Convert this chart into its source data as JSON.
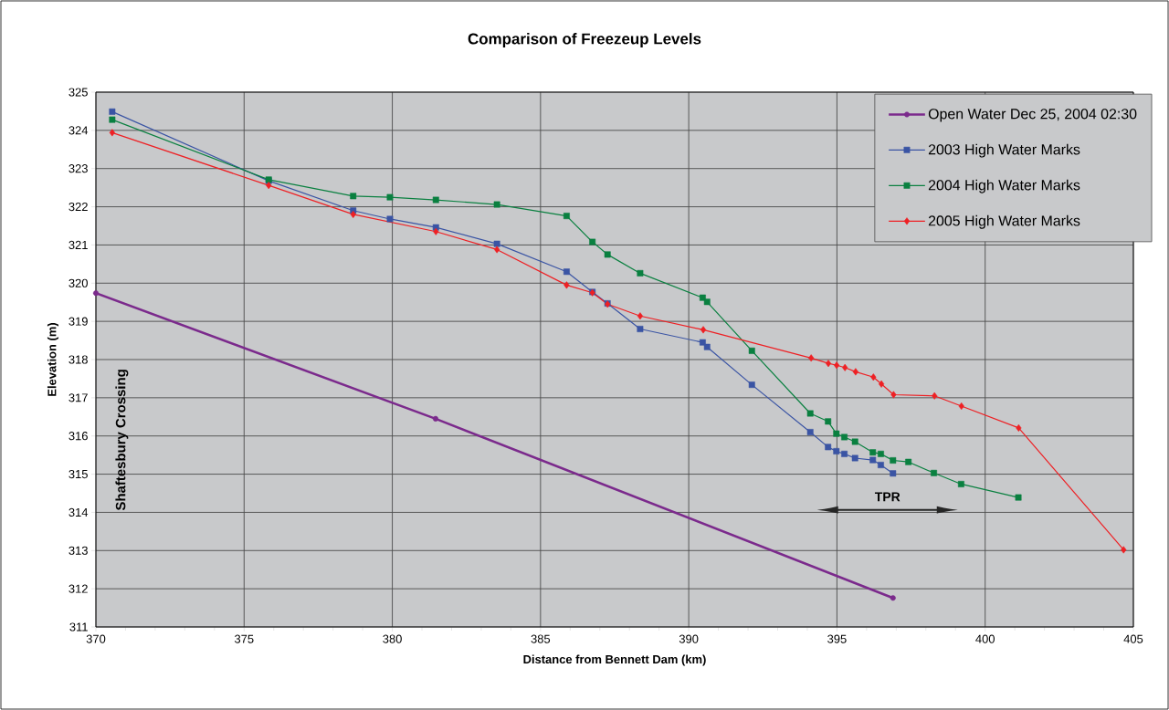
{
  "chart_data": {
    "type": "line",
    "title": "Comparison of Freezeup Levels",
    "xlabel": "Distance from Bennett Dam (km)",
    "ylabel": "Elevation (m)",
    "xlim": [
      370,
      405
    ],
    "xticks": [
      370,
      375,
      380,
      385,
      390,
      395,
      400,
      405
    ],
    "ylim": [
      311,
      325
    ],
    "yticks": [
      311,
      312,
      313,
      314,
      315,
      316,
      317,
      318,
      319,
      320,
      321,
      322,
      323,
      324,
      325
    ],
    "grid": true,
    "legend": "top right",
    "line_style": "solid",
    "annotations": [
      "Shaftesbury Crossing",
      "TPR"
    ],
    "series": [
      {
        "name": "Open Water Dec 25, 2004 02:30",
        "color": "#7b2a8c",
        "marker": "circle",
        "x": [
          370,
          381.46,
          396.89
        ],
        "values": [
          319.74,
          316.45,
          311.76
        ]
      },
      {
        "name": "2003 High Water Marks",
        "color": "#3a54a4",
        "marker": "square",
        "x": [
          370.55,
          375.83,
          378.68,
          379.92,
          381.47,
          383.53,
          385.88,
          386.75,
          387.26,
          388.36,
          390.47,
          390.62,
          392.13,
          394.1,
          394.7,
          394.98,
          395.25,
          395.61,
          396.21,
          396.48,
          396.89
        ],
        "values": [
          324.49,
          322.68,
          321.9,
          321.68,
          321.46,
          321.03,
          320.3,
          319.77,
          319.47,
          318.8,
          318.45,
          318.33,
          317.34,
          316.1,
          315.71,
          315.6,
          315.53,
          315.42,
          315.37,
          315.24,
          315.02
        ]
      },
      {
        "name": "2004 High Water Marks",
        "color": "#0a8040",
        "marker": "square",
        "x": [
          370.55,
          375.83,
          378.68,
          379.92,
          381.47,
          383.53,
          385.88,
          386.75,
          387.26,
          388.36,
          390.47,
          390.62,
          392.13,
          394.1,
          394.7,
          394.98,
          395.25,
          395.61,
          396.21,
          396.48,
          396.89,
          397.41,
          398.27,
          399.19,
          401.12
        ],
        "values": [
          324.28,
          322.71,
          322.28,
          322.25,
          322.18,
          322.06,
          321.76,
          321.08,
          320.75,
          320.26,
          319.62,
          319.51,
          318.23,
          316.59,
          316.38,
          316.06,
          315.97,
          315.85,
          315.57,
          315.53,
          315.36,
          315.32,
          315.03,
          314.74,
          314.39
        ]
      },
      {
        "name": "2005 High Water Marks",
        "color": "#ee2024",
        "marker": "diamond",
        "x": [
          370.55,
          375.83,
          378.68,
          381.47,
          383.53,
          385.88,
          386.75,
          387.26,
          388.36,
          390.49,
          394.13,
          394.71,
          394.99,
          395.27,
          395.63,
          396.23,
          396.5,
          396.91,
          398.29,
          399.2,
          401.13,
          404.67
        ],
        "values": [
          323.94,
          322.56,
          321.8,
          321.35,
          320.88,
          319.95,
          319.75,
          319.45,
          319.14,
          318.78,
          318.04,
          317.9,
          317.85,
          317.79,
          317.68,
          317.54,
          317.36,
          317.08,
          317.05,
          316.78,
          316.21,
          313.02
        ]
      }
    ]
  }
}
